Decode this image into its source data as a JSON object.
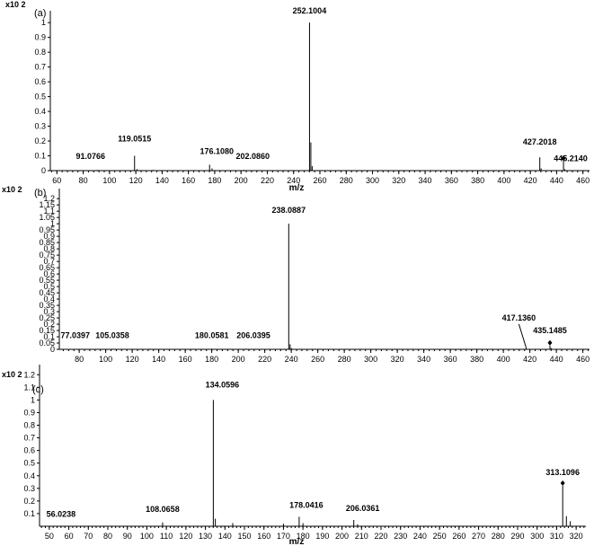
{
  "chart_data": [
    {
      "type": "bar",
      "panel_label": "(a)",
      "scale_label": "x10 2",
      "xlabel": "m/z",
      "ylabel": "",
      "xlim": [
        55,
        465
      ],
      "ylim": [
        0,
        1.08
      ],
      "x_ticks": [
        60,
        80,
        100,
        120,
        140,
        160,
        180,
        200,
        220,
        240,
        260,
        280,
        300,
        320,
        340,
        360,
        380,
        400,
        420,
        440,
        460
      ],
      "y_ticks": [
        "0",
        "0.1",
        "0.2",
        "0.3",
        "0.4",
        "0.5",
        "0.6",
        "0.7",
        "0.8",
        "0.9",
        "1"
      ],
      "peaks": [
        {
          "x": 91.0766,
          "y": 0.005
        },
        {
          "x": 119.0515,
          "y": 0.1
        },
        {
          "x": 121,
          "y": 0.01
        },
        {
          "x": 133,
          "y": 0.005
        },
        {
          "x": 176.108,
          "y": 0.04
        },
        {
          "x": 178,
          "y": 0.015
        },
        {
          "x": 202.086,
          "y": 0.005
        },
        {
          "x": 252.1004,
          "y": 1.0
        },
        {
          "x": 253.1,
          "y": 0.19
        },
        {
          "x": 254.1,
          "y": 0.03
        },
        {
          "x": 427.2018,
          "y": 0.09
        },
        {
          "x": 428.2,
          "y": 0.015
        },
        {
          "x": 445.214,
          "y": 0.065
        },
        {
          "x": 446.2,
          "y": 0.01
        }
      ],
      "labels": [
        {
          "text": "91.0766",
          "x": 91.0766,
          "y": 0.005
        },
        {
          "text": "119.0515",
          "x": 119.0515,
          "y": 0.1
        },
        {
          "text": "176.1080",
          "x": 176.108,
          "y": 0.04
        },
        {
          "text": "202.0860",
          "x": 202.086,
          "y": 0.005
        },
        {
          "text": "252.1004",
          "x": 252.1004,
          "y": 1.0
        },
        {
          "text": "427.2018",
          "x": 427.2018,
          "y": 0.09
        },
        {
          "text": "445.2140",
          "x": 445.214,
          "y": 0.065
        }
      ],
      "markers": [
        {
          "x": 445.214,
          "y": 0.065
        }
      ]
    },
    {
      "type": "bar",
      "panel_label": "(b)",
      "scale_label": "x10 2",
      "xlabel": "",
      "ylabel": "",
      "xlim": [
        65,
        465
      ],
      "ylim": [
        0,
        1.28
      ],
      "x_ticks": [
        80,
        100,
        120,
        140,
        160,
        180,
        200,
        220,
        240,
        260,
        280,
        300,
        320,
        340,
        360,
        380,
        400,
        420,
        440,
        460
      ],
      "y_ticks": [
        "0",
        "0.05",
        "0.1",
        "0.15",
        "0.2",
        "0.25",
        "0.3",
        "0.35",
        "0.4",
        "0.45",
        "0.5",
        "0.55",
        "0.6",
        "0.65",
        "0.7",
        "0.75",
        "0.8",
        "0.85",
        "0.9",
        "0.95",
        "1",
        "1.05",
        "1.1",
        "1.15",
        "1.2"
      ],
      "peaks": [
        {
          "x": 77.0397,
          "y": 0.003
        },
        {
          "x": 105.0358,
          "y": 0.004
        },
        {
          "x": 133,
          "y": 0.005
        },
        {
          "x": 180.0581,
          "y": 0.005
        },
        {
          "x": 206.0395,
          "y": 0.005
        },
        {
          "x": 238.0887,
          "y": 1.0
        },
        {
          "x": 239.1,
          "y": 0.04
        },
        {
          "x": 240.1,
          "y": 0.01
        },
        {
          "x": 417.136,
          "y": 0.015
        },
        {
          "x": 435.1485,
          "y": 0.03
        },
        {
          "x": 436.1,
          "y": 0.01
        }
      ],
      "labels": [
        {
          "text": "77.0397",
          "x": 77.0397,
          "y": 0.003
        },
        {
          "text": "105.0358",
          "x": 105.0358,
          "y": 0.004
        },
        {
          "text": "180.0581",
          "x": 180.0581,
          "y": 0.005
        },
        {
          "text": "206.0395",
          "x": 206.0395,
          "y": 0.005
        },
        {
          "text": "238.0887",
          "x": 238.0887,
          "y": 1.0
        },
        {
          "text": "417.1360",
          "x": 417.136,
          "y": 0.015
        },
        {
          "text": "435.1485",
          "x": 435.1485,
          "y": 0.03
        }
      ],
      "markers": [
        {
          "x": 435.1485,
          "y": 0.03
        }
      ]
    },
    {
      "type": "bar",
      "panel_label": "(c)",
      "scale_label": "x10 2",
      "xlabel": "m/z",
      "ylabel": "",
      "xlim": [
        45,
        325
      ],
      "ylim": [
        0,
        1.28
      ],
      "x_ticks": [
        50,
        60,
        70,
        80,
        90,
        100,
        110,
        120,
        130,
        140,
        150,
        160,
        170,
        180,
        190,
        200,
        210,
        220,
        230,
        240,
        250,
        260,
        270,
        280,
        290,
        300,
        310,
        320
      ],
      "y_ticks": [
        "0.1",
        "0.2",
        "0.3",
        "0.4",
        "0.5",
        "0.6",
        "0.7",
        "0.8",
        "0.9",
        "1",
        "1.1",
        "1.2"
      ],
      "peaks": [
        {
          "x": 56.0238,
          "y": 0.004
        },
        {
          "x": 80,
          "y": 0.004
        },
        {
          "x": 108.0658,
          "y": 0.03
        },
        {
          "x": 134.0596,
          "y": 1.0
        },
        {
          "x": 135.1,
          "y": 0.06
        },
        {
          "x": 144,
          "y": 0.025
        },
        {
          "x": 170,
          "y": 0.02
        },
        {
          "x": 178.0416,
          "y": 0.075
        },
        {
          "x": 180,
          "y": 0.025
        },
        {
          "x": 206.0361,
          "y": 0.05
        },
        {
          "x": 208,
          "y": 0.015
        },
        {
          "x": 313.1096,
          "y": 0.32
        },
        {
          "x": 315,
          "y": 0.08
        },
        {
          "x": 317,
          "y": 0.04
        }
      ],
      "labels": [
        {
          "text": "56.0238",
          "x": 56.0238,
          "y": 0.004
        },
        {
          "text": "108.0658",
          "x": 108.0658,
          "y": 0.03
        },
        {
          "text": "134.0596",
          "x": 134.0596,
          "y": 1.0
        },
        {
          "text": "178.0416",
          "x": 178.0416,
          "y": 0.075
        },
        {
          "text": "206.0361",
          "x": 206.0361,
          "y": 0.05
        },
        {
          "text": "313.1096",
          "x": 313.1096,
          "y": 0.32
        }
      ],
      "markers": [
        {
          "x": 313.1096,
          "y": 0.32
        }
      ]
    }
  ]
}
